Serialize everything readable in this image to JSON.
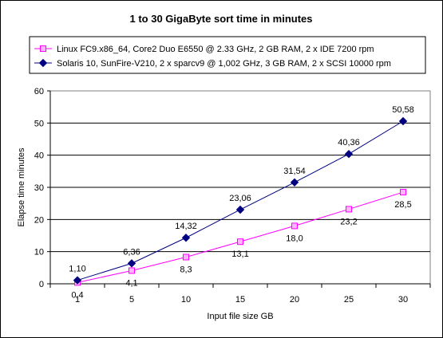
{
  "chart_data": {
    "type": "line",
    "title": "1 to 30 GigaByte sort time in minutes",
    "xlabel": "Input file size GB",
    "ylabel": "Elapse time minutes",
    "categories": [
      "1",
      "5",
      "10",
      "15",
      "20",
      "25",
      "30"
    ],
    "ylim": [
      0,
      60
    ],
    "yticks": [
      "0",
      "10",
      "20",
      "30",
      "40",
      "50",
      "60"
    ],
    "grid": "horizontal",
    "legend_position": "top",
    "series": [
      {
        "name": "Linux FC9.x86_64, Core2 Duo E6550 @ 2.33 GHz, 2 GB RAM, 2 x IDE 7200 rpm",
        "values": [
          0.4,
          4.1,
          8.3,
          13.1,
          18.0,
          23.2,
          28.5
        ],
        "labels": [
          "0,4",
          "4,1",
          "8,3",
          "13,1",
          "18,0",
          "23,2",
          "28,5"
        ],
        "color": "#ff00ff",
        "marker": "square",
        "label_position": "below"
      },
      {
        "name": "Solaris 10, SunFire-V210, 2 x sparcv9 @ 1,002 GHz, 3 GB RAM, 2 x SCSI 10000 rpm",
        "values": [
          1.1,
          6.36,
          14.32,
          23.06,
          31.54,
          40.36,
          50.58
        ],
        "labels": [
          "1,10",
          "6,36",
          "14,32",
          "23,06",
          "31,54",
          "40,36",
          "50,58"
        ],
        "color": "#000080",
        "marker": "diamond",
        "label_position": "above"
      }
    ]
  }
}
